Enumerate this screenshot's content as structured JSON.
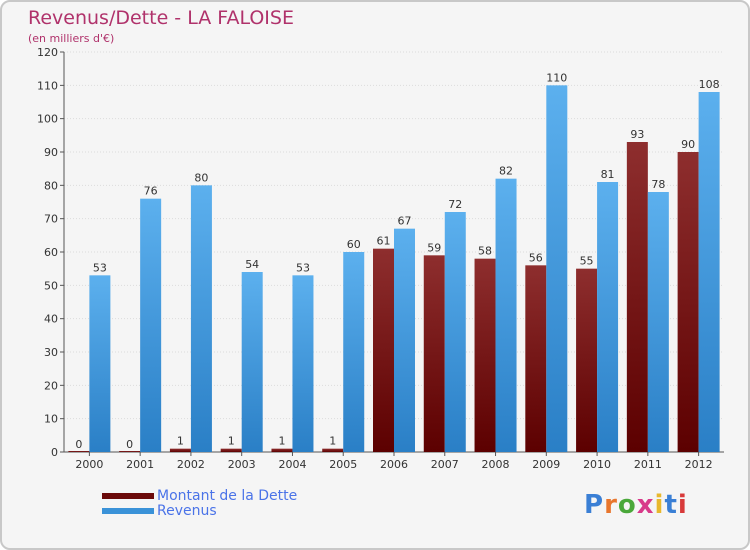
{
  "title": "Revenus/Dette - LA FALOISE",
  "subtitle": "(en milliers d'€)",
  "logo_text": "Proxiti",
  "chart_data": {
    "type": "bar",
    "title": "Revenus/Dette - LA FALOISE",
    "ylabel": "(en milliers d'€)",
    "xlabel": "",
    "ylim": [
      0,
      120
    ],
    "yticks": [
      0,
      10,
      20,
      30,
      40,
      50,
      60,
      70,
      80,
      90,
      100,
      110,
      120
    ],
    "grid": true,
    "legend_position": "bottom-left",
    "categories": [
      "2000",
      "2001",
      "2002",
      "2003",
      "2004",
      "2005",
      "2006",
      "2007",
      "2008",
      "2009",
      "2010",
      "2011",
      "2012"
    ],
    "series": [
      {
        "name": "Montant de la Dette",
        "color": "#6b0a0a",
        "values": [
          0,
          0,
          1,
          1,
          1,
          1,
          61,
          59,
          58,
          56,
          55,
          93,
          90
        ]
      },
      {
        "name": "Revenus",
        "color": "#3a92d8",
        "values": [
          53,
          76,
          80,
          54,
          53,
          60,
          67,
          72,
          82,
          110,
          81,
          78,
          108
        ]
      }
    ]
  }
}
